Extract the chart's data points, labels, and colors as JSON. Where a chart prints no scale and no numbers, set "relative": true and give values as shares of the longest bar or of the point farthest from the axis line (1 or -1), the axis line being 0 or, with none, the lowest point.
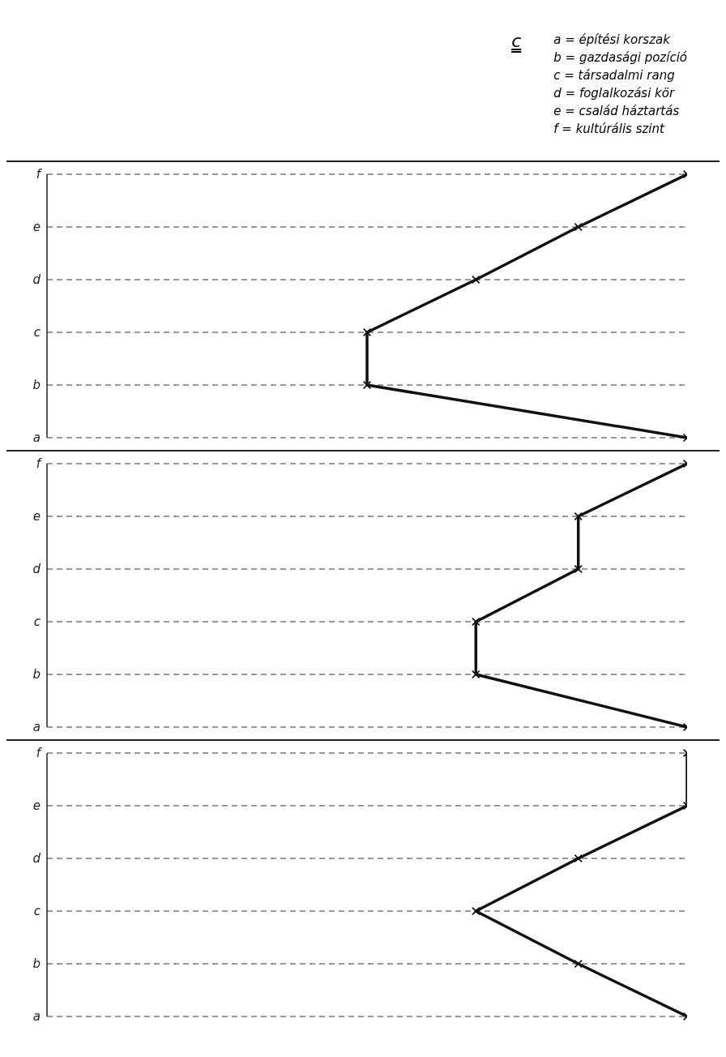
{
  "chart_data": [
    {
      "type": "line",
      "relative": true,
      "orientation": "horizontal",
      "categories": [
        "f",
        "e",
        "d",
        "c",
        "b",
        "a"
      ],
      "values": [
        1,
        0.83,
        0.67,
        0.5,
        0.5,
        1
      ],
      "color": "#111111",
      "marker": "cross",
      "line_style": "solid",
      "grid": "y",
      "annotations": [
        "c",
        "a = építési korszak",
        "b = gazdasági pozíció",
        "c = társadalmi rang",
        "d = foglalkozási kör",
        "e = család háztartás",
        "f = kultúrális szint"
      ]
    },
    {
      "type": "line",
      "relative": true,
      "orientation": "horizontal",
      "categories": [
        "f",
        "e",
        "d",
        "c",
        "b",
        "a"
      ],
      "values": [
        1,
        0.83,
        0.83,
        0.67,
        0.67,
        1
      ],
      "color": "#111111",
      "marker": "cross",
      "line_style": "solid",
      "grid": "y"
    },
    {
      "type": "line",
      "relative": true,
      "orientation": "horizontal",
      "categories": [
        "f",
        "e",
        "d",
        "c",
        "b",
        "a"
      ],
      "values": [
        1,
        1,
        0.83,
        0.67,
        0.83,
        1
      ],
      "color": "#111111",
      "marker": "cross",
      "line_style": "solid",
      "grid": "y"
    }
  ]
}
